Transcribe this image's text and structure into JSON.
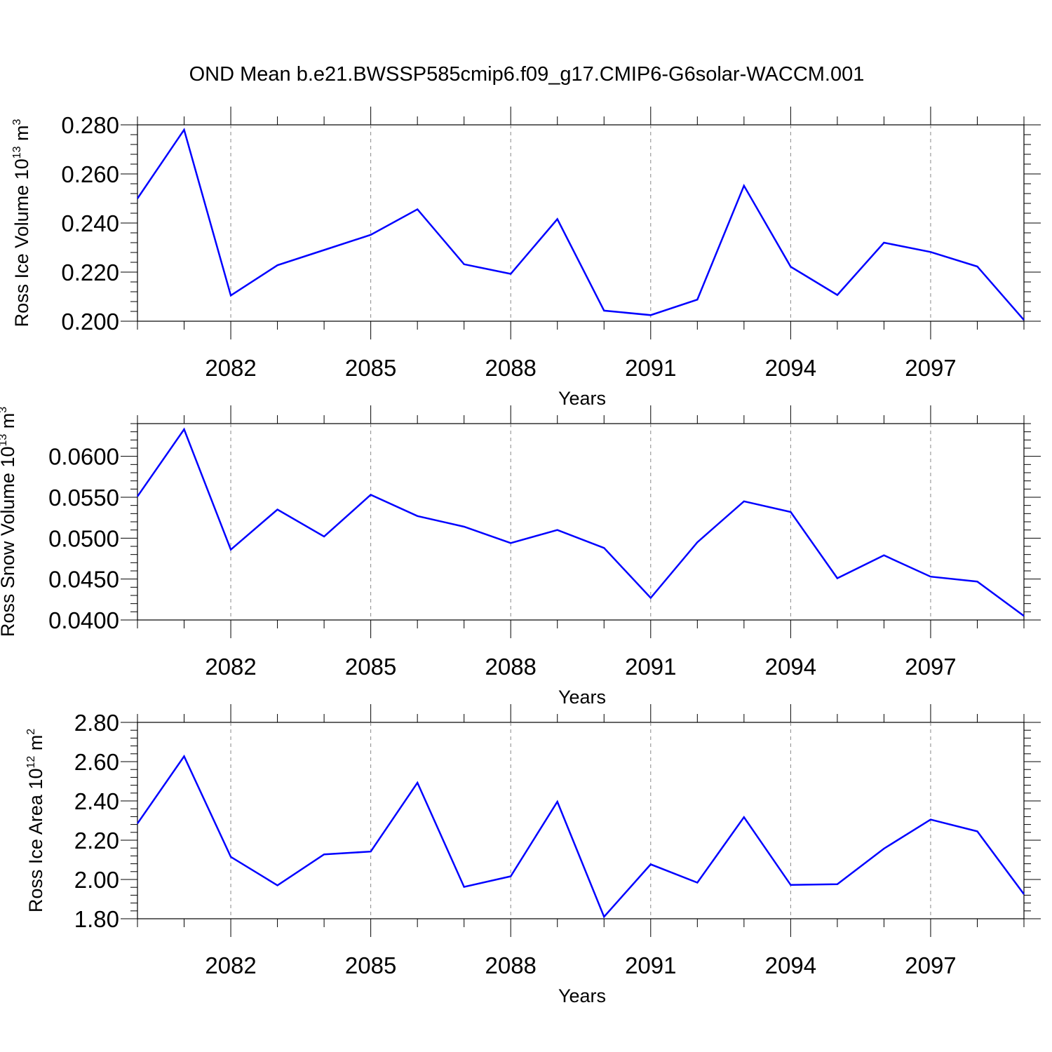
{
  "title": "OND Mean b.e21.BWSSP585cmip6.f09_g17.CMIP6-G6solar-WACCM.001",
  "chart_data": [
    {
      "type": "line",
      "ylabel": {
        "base": "Ross Ice Volume 10",
        "exp": "13",
        "unit": " m",
        "unit_exp": "3"
      },
      "xlabel": "Years",
      "x": [
        2080,
        2081,
        2082,
        2083,
        2084,
        2085,
        2086,
        2087,
        2088,
        2089,
        2090,
        2091,
        2092,
        2093,
        2094,
        2095,
        2096,
        2097,
        2098,
        2099
      ],
      "values": [
        0.25,
        0.278,
        0.2105,
        0.2228,
        0.229,
        0.2352,
        0.2456,
        0.2232,
        0.2193,
        0.2416,
        0.2043,
        0.2025,
        0.2088,
        0.2552,
        0.2222,
        0.2107,
        0.232,
        0.2282,
        0.2223,
        0.2005
      ],
      "xlim": [
        2080,
        2099
      ],
      "ylim": [
        0.2,
        0.28
      ],
      "yticks": [
        0.2,
        0.22,
        0.24,
        0.26,
        0.28
      ],
      "ytick_labels": [
        "0.200",
        "0.220",
        "0.240",
        "0.260",
        "0.280"
      ],
      "xticks": [
        2082,
        2085,
        2088,
        2091,
        2094,
        2097
      ],
      "xtick_labels": [
        "2082",
        "2085",
        "2088",
        "2091",
        "2094",
        "2097"
      ],
      "color": "#0000ff",
      "grid": "vertical dashed at labeled years"
    },
    {
      "type": "line",
      "ylabel": {
        "base": "Ross Snow Volume 10",
        "exp": "13",
        "unit": " m",
        "unit_exp": "3"
      },
      "xlabel": "Years",
      "x": [
        2080,
        2081,
        2082,
        2083,
        2084,
        2085,
        2086,
        2087,
        2088,
        2089,
        2090,
        2091,
        2092,
        2093,
        2094,
        2095,
        2096,
        2097,
        2098,
        2099
      ],
      "values": [
        0.0551,
        0.0633,
        0.0486,
        0.0535,
        0.0502,
        0.0553,
        0.0527,
        0.0514,
        0.0494,
        0.051,
        0.0488,
        0.0427,
        0.0495,
        0.0545,
        0.0532,
        0.0451,
        0.0479,
        0.0453,
        0.0447,
        0.0405
      ],
      "xlim": [
        2080,
        2099
      ],
      "ylim": [
        0.04,
        0.064
      ],
      "yticks": [
        0.04,
        0.045,
        0.05,
        0.055,
        0.06
      ],
      "ytick_labels": [
        "0.0400",
        "0.0450",
        "0.0500",
        "0.0550",
        "0.0600"
      ],
      "xticks": [
        2082,
        2085,
        2088,
        2091,
        2094,
        2097
      ],
      "xtick_labels": [
        "2082",
        "2085",
        "2088",
        "2091",
        "2094",
        "2097"
      ],
      "color": "#0000ff",
      "grid": "vertical dashed at labeled years"
    },
    {
      "type": "line",
      "ylabel": {
        "base": "Ross Ice Area 10",
        "exp": "12",
        "unit": " m",
        "unit_exp": "2"
      },
      "xlabel": "Years",
      "x": [
        2080,
        2081,
        2082,
        2083,
        2084,
        2085,
        2086,
        2087,
        2088,
        2089,
        2090,
        2091,
        2092,
        2093,
        2094,
        2095,
        2096,
        2097,
        2098,
        2099
      ],
      "values": [
        2.285,
        2.627,
        2.115,
        1.97,
        2.128,
        2.142,
        2.493,
        1.962,
        2.016,
        2.396,
        1.81,
        2.077,
        1.984,
        2.317,
        1.972,
        1.976,
        2.157,
        2.305,
        2.245,
        1.925
      ],
      "xlim": [
        2080,
        2099
      ],
      "ylim": [
        1.8,
        2.8
      ],
      "yticks": [
        1.8,
        2.0,
        2.2,
        2.4,
        2.6,
        2.8
      ],
      "ytick_labels": [
        "1.80",
        "2.00",
        "2.20",
        "2.40",
        "2.60",
        "2.80"
      ],
      "xticks": [
        2082,
        2085,
        2088,
        2091,
        2094,
        2097
      ],
      "xtick_labels": [
        "2082",
        "2085",
        "2088",
        "2091",
        "2094",
        "2097"
      ],
      "color": "#0000ff",
      "grid": "vertical dashed at labeled years"
    }
  ]
}
